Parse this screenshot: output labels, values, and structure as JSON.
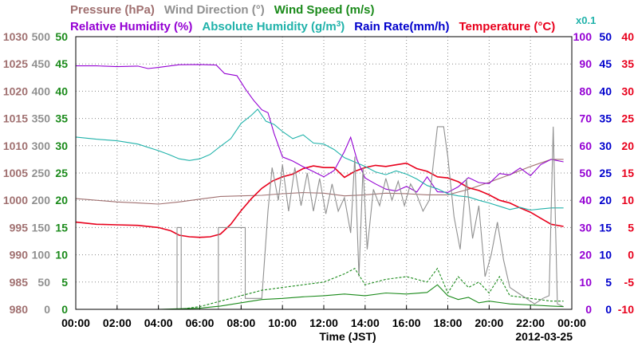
{
  "chart_data": {
    "type": "line",
    "date": "2012-03-25",
    "x_axis": {
      "title": "Time (JST)",
      "ticks": [
        "00:00",
        "02:00",
        "04:00",
        "06:00",
        "08:00",
        "10:00",
        "12:00",
        "14:00",
        "16:00",
        "18:00",
        "20:00",
        "22:00",
        "00:00"
      ],
      "range_hours": [
        0,
        24
      ]
    },
    "legend_top": [
      {
        "text": "Pressure (hPa)",
        "color": "#a07070"
      },
      {
        "text": "Wind Direction (°)",
        "color": "#909090"
      },
      {
        "text": "Wind Speed (m/s)",
        "color": "#1a8a1a"
      }
    ],
    "legend_second": [
      {
        "text": "Relative Humidity (%)",
        "color": "#9400d3"
      },
      {
        "text": "Absolute Humidity (g/m",
        "sup": "3",
        "close": ")",
        "color": "#20b2aa"
      },
      {
        "text": "Rain Rate(mm/h)",
        "color": "#0000cc"
      },
      {
        "text": "Temperature (°C)",
        "color": "#e8001c"
      }
    ],
    "right_scale_note": "x0.1",
    "axes": {
      "pressure": {
        "color": "#a07070",
        "range": [
          980,
          1030
        ],
        "ticks": [
          "1030",
          "1025",
          "1020",
          "1015",
          "1010",
          "1005",
          "1000",
          "995",
          "990",
          "985",
          "980"
        ]
      },
      "wind_direction": {
        "color": "#909090",
        "range": [
          0,
          500
        ],
        "ticks": [
          "500",
          "450",
          "400",
          "350",
          "300",
          "250",
          "200",
          "150",
          "100",
          "50",
          "0"
        ]
      },
      "wind_speed": {
        "color": "#1a8a1a",
        "range": [
          0,
          50
        ],
        "ticks": [
          "50",
          "45",
          "40",
          "35",
          "30",
          "25",
          "20",
          "15",
          "10",
          "5",
          "0"
        ]
      },
      "relative_humidity": {
        "color": "#9400d3",
        "range": [
          0,
          100
        ],
        "ticks": [
          "100",
          "90",
          "80",
          "70",
          "60",
          "50",
          "40",
          "30",
          "20",
          "10",
          "0"
        ]
      },
      "rain_rate": {
        "color": "#0000cc",
        "range": [
          0,
          50
        ],
        "ticks": [
          "50",
          "45",
          "40",
          "35",
          "30",
          "25",
          "20",
          "15",
          "10",
          "5",
          "0"
        ]
      },
      "temperature": {
        "color": "#e8001c",
        "range": [
          -10,
          40
        ],
        "ticks": [
          "40",
          "35",
          "30",
          "25",
          "20",
          "15",
          "10",
          "5",
          "0",
          "-5",
          "-10"
        ]
      }
    },
    "grid": true,
    "series": [
      {
        "key": "pressure",
        "color": "#a07070",
        "x": [
          0,
          1,
          2,
          3,
          4,
          5,
          6,
          7,
          8,
          9,
          10,
          11,
          12,
          13,
          14,
          15,
          16,
          17,
          18,
          19,
          20,
          21,
          22,
          23,
          23.6
        ],
        "y": [
          1000.3,
          1000,
          999.7,
          999.5,
          999.3,
          999.7,
          1000.2,
          1000.7,
          1000.8,
          1000.9,
          1001.2,
          1001.4,
          1001.3,
          1000.8,
          1001.0,
          1001.3,
          1001.2,
          1001.0,
          1001.0,
          1002.0,
          1003.3,
          1004.7,
          1006.2,
          1007.5,
          1007.5
        ]
      },
      {
        "key": "temperature",
        "color": "#e8001c",
        "x": [
          0,
          1,
          2,
          3,
          4,
          4.6,
          5,
          5.5,
          6,
          6.5,
          7,
          7.5,
          8,
          8.5,
          9,
          9.5,
          10,
          10.5,
          11,
          11.5,
          12,
          12.5,
          13,
          13.5,
          14,
          14.5,
          15,
          15.5,
          16,
          16.5,
          17,
          17.5,
          18,
          18.5,
          19,
          19.5,
          20,
          20.5,
          21,
          21.5,
          22,
          22.5,
          23,
          23.6
        ],
        "y": [
          6.0,
          5.6,
          5.5,
          5.4,
          5.0,
          4.4,
          3.6,
          3.3,
          3.2,
          3.3,
          3.8,
          5.6,
          8.1,
          10.3,
          12.2,
          13.5,
          14.3,
          14.8,
          15.8,
          16.3,
          16.0,
          16.0,
          14.2,
          15.3,
          16.0,
          16.4,
          16.2,
          16.5,
          16.8,
          15.8,
          15.3,
          14.3,
          14.1,
          13.4,
          12.3,
          11.8,
          11.0,
          10.0,
          9.5,
          8.6,
          7.8,
          6.7,
          5.6,
          5.2
        ]
      },
      {
        "key": "relative_humidity",
        "color": "#9400d3",
        "x": [
          0,
          1,
          2,
          3,
          3.5,
          4,
          5,
          6,
          6.8,
          7.2,
          7.8,
          8.2,
          8.6,
          9,
          9.3,
          9.6,
          10,
          10.5,
          11,
          11.5,
          12,
          12.5,
          13,
          13.3,
          13.6,
          14,
          14.5,
          15,
          15.5,
          16,
          16.5,
          17,
          17.5,
          18,
          18.5,
          19,
          19.5,
          20,
          20.5,
          21,
          21.5,
          22,
          22.5,
          23,
          23.6
        ],
        "y": [
          89.3,
          89.3,
          89.0,
          89.2,
          88.3,
          88.7,
          89.7,
          89.8,
          89.6,
          86.5,
          85.7,
          80.9,
          76.7,
          73.2,
          72.1,
          64.4,
          55.9,
          54.4,
          52.3,
          50.5,
          48.6,
          50.9,
          57.9,
          63.1,
          55.0,
          48.2,
          46.0,
          44.1,
          43.4,
          45.1,
          43.0,
          48.6,
          43.1,
          42.9,
          44.9,
          48.3,
          46.5,
          46.1,
          49.8,
          49.3,
          51.8,
          49.0,
          53.1,
          55.0,
          54.1
        ]
      },
      {
        "key": "absolute_humidity",
        "color": "#20b2aa",
        "axis": "wind_speed",
        "x": [
          0,
          1,
          2,
          3,
          4,
          4.5,
          5,
          5.5,
          6,
          6.5,
          7,
          7.5,
          8,
          8.5,
          8.8,
          9.2,
          9.6,
          10,
          10.5,
          11,
          11.5,
          12,
          12.5,
          13,
          13.5,
          14,
          14.5,
          15,
          15.5,
          16,
          16.5,
          17,
          17.5,
          18,
          18.5,
          19,
          19.5,
          20,
          20.5,
          21,
          21.5,
          22,
          22.5,
          23,
          23.6
        ],
        "y": [
          31.6,
          31.2,
          30.9,
          30.3,
          29.1,
          28.4,
          27.6,
          27.3,
          27.6,
          28.4,
          29.9,
          31.3,
          34.1,
          35.6,
          36.7,
          34.5,
          33.9,
          32.6,
          31.3,
          32.0,
          30.5,
          30.3,
          29.3,
          27.8,
          27.0,
          26.2,
          25.2,
          24.7,
          25.4,
          24.8,
          23.9,
          22.7,
          22.1,
          21.2,
          20.8,
          20.6,
          20.0,
          19.5,
          18.9,
          18.3,
          18.7,
          18.2,
          18.4,
          18.6,
          18.6
        ]
      },
      {
        "key": "wind_direction",
        "color": "#909090",
        "x": [
          0,
          4.9,
          4.9,
          5.1,
          5.1,
          6.9,
          6.9,
          8.2,
          8.2,
          9.0,
          9.3,
          9.5,
          9.8,
          10.0,
          10.3,
          10.6,
          10.9,
          11.2,
          11.5,
          11.8,
          12.1,
          12.4,
          12.7,
          13.0,
          13.3,
          13.5,
          13.7,
          13.9,
          14.1,
          14.4,
          14.7,
          15.0,
          15.3,
          15.6,
          15.9,
          16.2,
          16.5,
          16.8,
          17.1,
          17.5,
          17.8,
          18.0,
          18.3,
          18.6,
          18.9,
          19.2,
          19.5,
          19.8,
          20.1,
          20.4,
          20.7,
          21.0,
          21.4,
          21.8,
          22.2,
          22.6,
          22.9,
          23.1,
          23.3,
          23.6
        ],
        "y": [
          0,
          0,
          150,
          150,
          0,
          0,
          150,
          150,
          20,
          20,
          180,
          260,
          200,
          265,
          180,
          260,
          190,
          250,
          180,
          240,
          175,
          230,
          180,
          205,
          140,
          280,
          60,
          260,
          110,
          220,
          190,
          240,
          200,
          235,
          190,
          230,
          210,
          180,
          200,
          335,
          335,
          280,
          170,
          110,
          240,
          130,
          190,
          60,
          100,
          160,
          90,
          40,
          30,
          20,
          10,
          20,
          25,
          335,
          10,
          5
        ]
      },
      {
        "key": "wind_speed",
        "color": "#1a8a1a",
        "style": "solid",
        "x": [
          0,
          4,
          6,
          7,
          8,
          9,
          10,
          11,
          12,
          13,
          14,
          15,
          16,
          17,
          17.5,
          18,
          18.5,
          19,
          19.5,
          20,
          21,
          22,
          23,
          23.6
        ],
        "y": [
          0,
          0,
          0.2,
          0.6,
          1.2,
          1.8,
          2.0,
          2.3,
          2.5,
          2.8,
          2.5,
          3.0,
          2.8,
          3.1,
          4.5,
          2.5,
          1.8,
          2.2,
          1.2,
          1.5,
          1.0,
          0.8,
          0.6,
          0.5
        ]
      },
      {
        "key": "wind_speed_gust",
        "color": "#1a8a1a",
        "style": "dashed",
        "axis": "wind_speed",
        "x": [
          0,
          5,
          6,
          7,
          8,
          9,
          10,
          11,
          12,
          13,
          13.5,
          14,
          15,
          16,
          17,
          17.5,
          18,
          18.5,
          19,
          19.5,
          20,
          20.5,
          21,
          22,
          23,
          23.6
        ],
        "y": [
          0,
          0,
          0.5,
          1.5,
          2.5,
          3.5,
          4.0,
          4.5,
          5.0,
          6.5,
          7.5,
          4.5,
          5.5,
          6.0,
          5.0,
          7.5,
          3.0,
          6.0,
          4.0,
          5.0,
          3.0,
          6.0,
          2.5,
          2.0,
          1.5,
          1.5
        ]
      }
    ]
  }
}
